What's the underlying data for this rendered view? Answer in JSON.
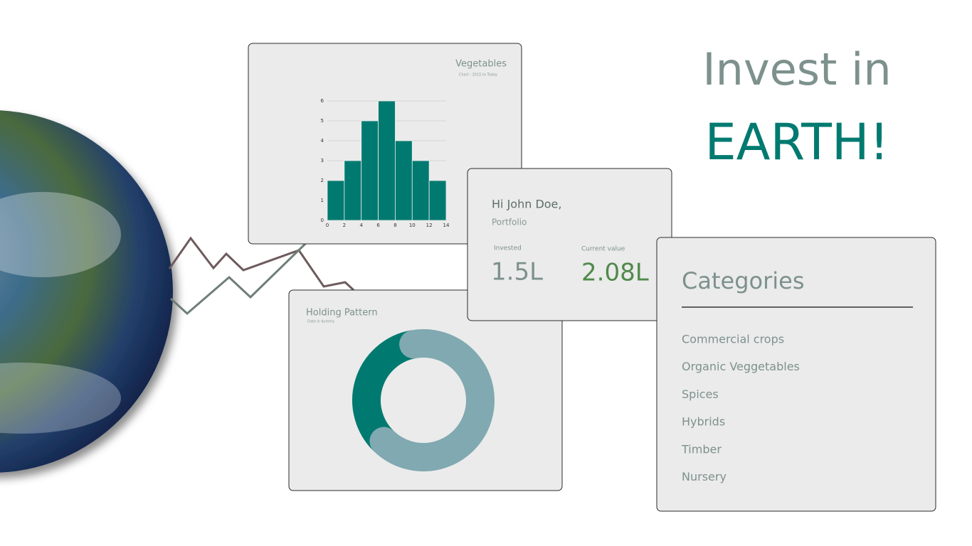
{
  "hero": {
    "line1": "Invest in",
    "line2": "EARTH!"
  },
  "portfolio": {
    "greeting": "Hi John Doe,",
    "subtitle": "Portfolio",
    "invested_label": "Invested",
    "invested_value": "1.5L",
    "current_label": "Current value",
    "current_value": "2.08L"
  },
  "categories": {
    "title": "Categories",
    "items": [
      "Commercial crops",
      "Organic Veggetables",
      "Spices",
      "Hybrids",
      "Timber",
      "Nursery"
    ]
  },
  "chart_data": [
    {
      "type": "histogram",
      "title": "Vegetables",
      "subtitle": "Chart - 2015 to Today",
      "bins": [
        0,
        2,
        4,
        6,
        8,
        10,
        12,
        14
      ],
      "values": [
        2,
        3,
        5,
        6,
        4,
        3,
        2
      ],
      "color": "#007a70",
      "xlim": [
        0,
        14
      ],
      "xticks": [
        0,
        2,
        4,
        6,
        8,
        10,
        12,
        14
      ],
      "ylim": [
        0,
        6
      ],
      "yticks": [
        0,
        1,
        2,
        3,
        4,
        5,
        6
      ],
      "grid": true
    },
    {
      "type": "donut",
      "title": "Holding Pattern",
      "subtitle": "Data is dummy",
      "values": [
        35,
        65
      ],
      "colors": [
        "#007a70",
        "#80a9b1"
      ]
    }
  ]
}
